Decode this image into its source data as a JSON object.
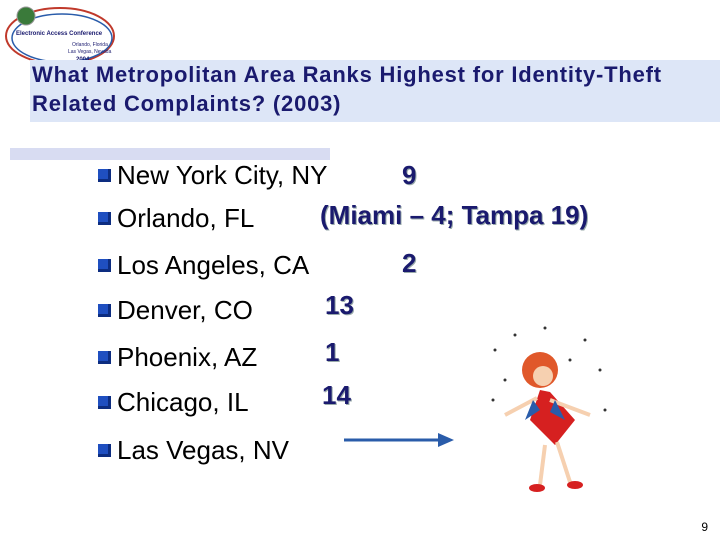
{
  "logo": {
    "name": "Electronic Access Conference",
    "line1": "Orlando, Florida",
    "line2": "Las Vegas, Nevada",
    "year": "2004"
  },
  "title": "What Metropolitan Area Ranks Highest for Identity-Theft Related Complaints? (2003)",
  "items": [
    {
      "city": "New York City, NY",
      "rank": "9"
    },
    {
      "city": "Orlando, FL",
      "rank": "(Miami – 4; Tampa 19)"
    },
    {
      "city": "Los Angeles, CA",
      "rank": "2"
    },
    {
      "city": "Denver, CO",
      "rank": "13"
    },
    {
      "city": "Phoenix, AZ",
      "rank": "1"
    },
    {
      "city": "Chicago, IL",
      "rank": "14"
    },
    {
      "city": "Las Vegas, NV"
    }
  ],
  "page_number": "9"
}
